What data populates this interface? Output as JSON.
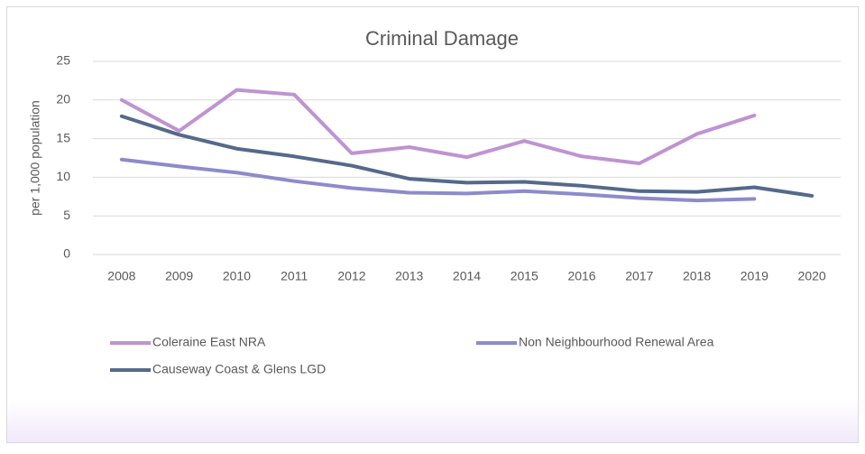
{
  "chart_data": {
    "type": "line",
    "title": "Criminal Damage",
    "y_label": "per 1,000 population",
    "categories": [
      "2008",
      "2009",
      "2010",
      "2011",
      "2012",
      "2013",
      "2014",
      "2015",
      "2016",
      "2017",
      "2018",
      "2019",
      "2020"
    ],
    "series": [
      {
        "name": "Coleraine East NRA",
        "color": "#bf93d1",
        "values": [
          20.0,
          16.0,
          21.3,
          20.7,
          13.1,
          13.9,
          12.6,
          14.7,
          12.7,
          11.8,
          15.6,
          18.0,
          null
        ]
      },
      {
        "name": "Non Neighbourhood Renewal Area",
        "color": "#8d8bcb",
        "values": [
          12.3,
          11.4,
          10.6,
          9.5,
          8.6,
          8.0,
          7.9,
          8.2,
          7.8,
          7.3,
          7.0,
          7.2,
          null
        ]
      },
      {
        "name": "Causeway Coast & Glens LGD",
        "color": "#55698a",
        "values": [
          17.9,
          15.5,
          13.7,
          12.7,
          11.5,
          9.8,
          9.3,
          9.4,
          8.9,
          8.2,
          8.1,
          8.7,
          7.6
        ]
      }
    ],
    "ylim": [
      0,
      25
    ],
    "yticks": [
      0,
      5,
      10,
      15,
      20,
      25
    ],
    "grid": true,
    "legend": "bottom"
  }
}
